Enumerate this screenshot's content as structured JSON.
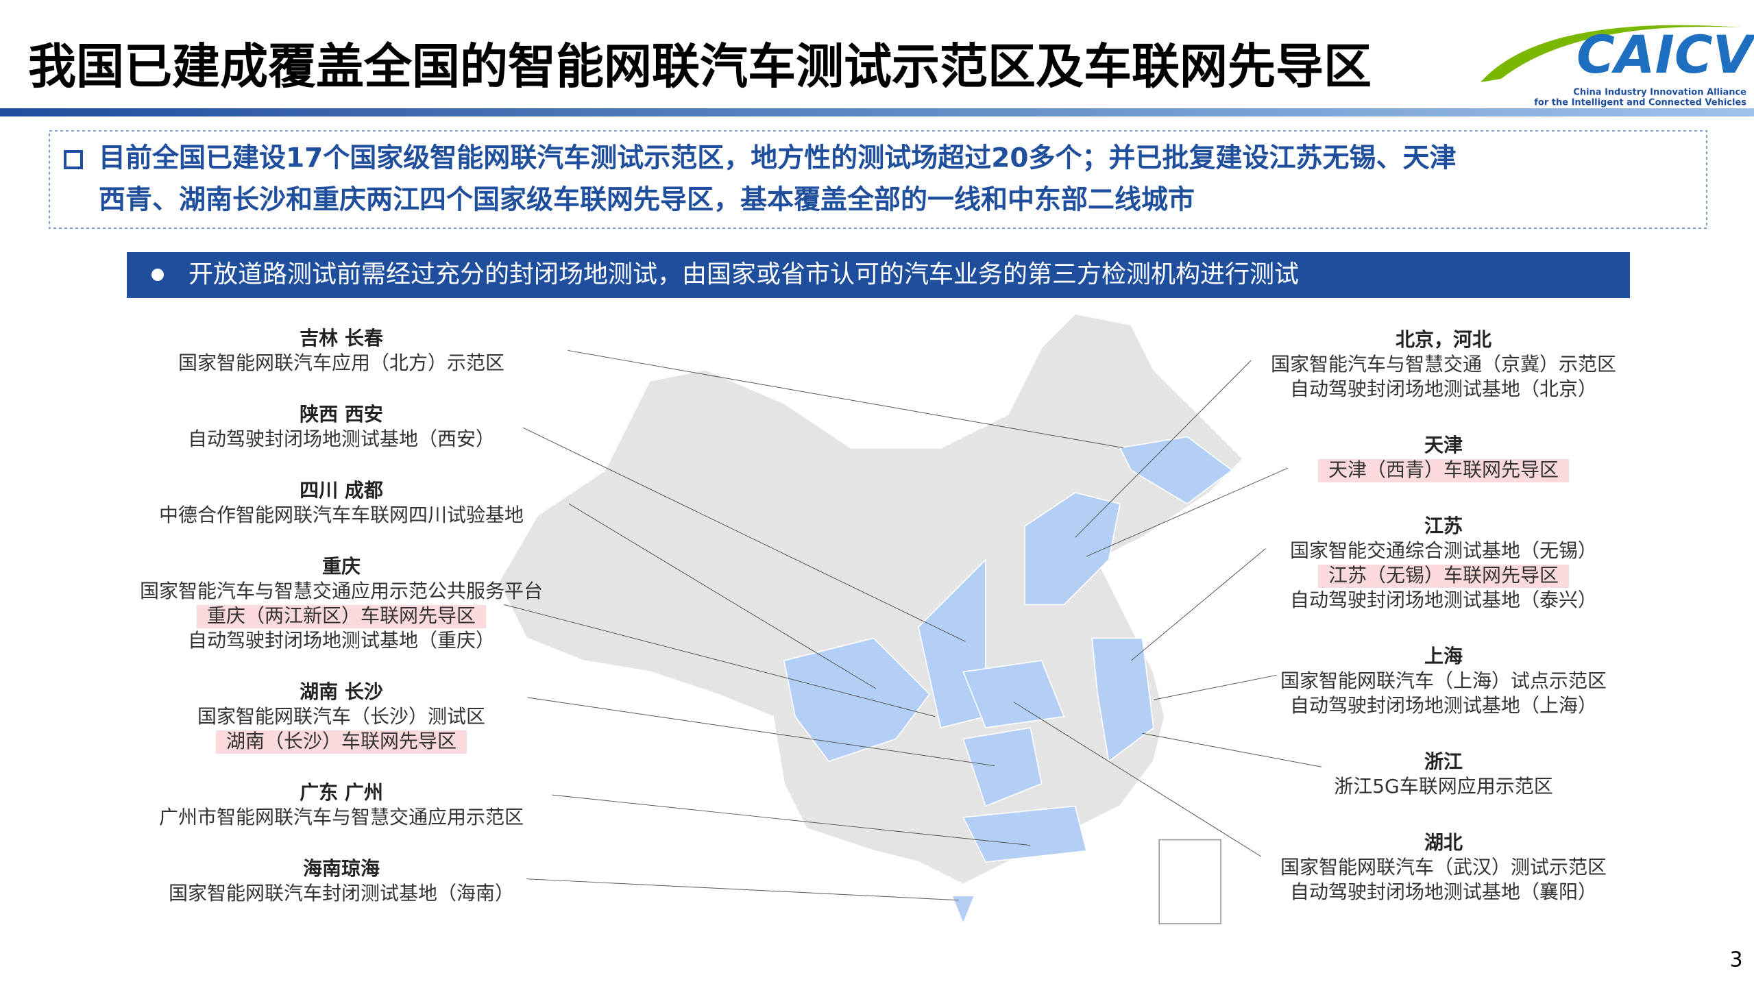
{
  "header": {
    "title": "我国已建成覆盖全国的智能网联汽车测试示范区及车联网先导区"
  },
  "logo": {
    "name": "CAICV",
    "line1": "China Industry Innovation Alliance",
    "line2": "for the Intelligent and Connected Vehicles"
  },
  "summary": {
    "lines": [
      "目前全国已建设17个国家级智能网联汽车测试示范区，地方性的测试场超过20多个；并已批复建设江苏无锡、天津",
      "西青、湖南长沙和重庆两江四个国家级车联网先导区，基本覆盖全部的一线和中东部二线城市"
    ]
  },
  "banner": {
    "text": "开放道路测试前需经过充分的封闭场地测试，由国家或省市认可的汽车业务的第三方检测机构进行测试"
  },
  "left": [
    {
      "region": "吉林 长春",
      "items": [
        {
          "text": "国家智能网联汽车应用（北方）示范区",
          "highlight": false
        }
      ]
    },
    {
      "region": "陕西 西安",
      "items": [
        {
          "text": "自动驾驶封闭场地测试基地（西安）",
          "highlight": false
        }
      ]
    },
    {
      "region": "四川 成都",
      "items": [
        {
          "text": "中德合作智能网联汽车车联网四川试验基地",
          "highlight": false
        }
      ]
    },
    {
      "region": "重庆",
      "items": [
        {
          "text": "国家智能汽车与智慧交通应用示范公共服务平台",
          "highlight": false
        },
        {
          "text": "重庆（两江新区）车联网先导区",
          "highlight": true
        },
        {
          "text": "自动驾驶封闭场地测试基地（重庆）",
          "highlight": false
        }
      ]
    },
    {
      "region": "湖南 长沙",
      "items": [
        {
          "text": "国家智能网联汽车（长沙）测试区",
          "highlight": false
        },
        {
          "text": "湖南（长沙）车联网先导区",
          "highlight": true
        }
      ]
    },
    {
      "region": "广东 广州",
      "items": [
        {
          "text": "广州市智能网联汽车与智慧交通应用示范区",
          "highlight": false
        }
      ]
    },
    {
      "region": "海南琼海",
      "items": [
        {
          "text": "国家智能网联汽车封闭测试基地（海南）",
          "highlight": false
        }
      ]
    }
  ],
  "right": [
    {
      "region": "北京，河北",
      "items": [
        {
          "text": "国家智能汽车与智慧交通（京冀）示范区",
          "highlight": false
        },
        {
          "text": "自动驾驶封闭场地测试基地（北京）",
          "highlight": false
        }
      ]
    },
    {
      "region": "天津",
      "items": [
        {
          "text": "天津（西青）车联网先导区",
          "highlight": true
        }
      ]
    },
    {
      "region": "江苏",
      "items": [
        {
          "text": "国家智能交通综合测试基地（无锡）",
          "highlight": false
        },
        {
          "text": "江苏（无锡）车联网先导区",
          "highlight": true
        },
        {
          "text": "自动驾驶封闭场地测试基地（泰兴）",
          "highlight": false
        }
      ]
    },
    {
      "region": "上海",
      "items": [
        {
          "text": "国家智能网联汽车（上海）试点示范区",
          "highlight": false
        },
        {
          "text": "自动驾驶封闭场地测试基地（上海）",
          "highlight": false
        }
      ]
    },
    {
      "region": "浙江",
      "items": [
        {
          "text": "浙江5G车联网应用示范区",
          "highlight": false
        }
      ]
    },
    {
      "region": "湖北",
      "items": [
        {
          "text": "国家智能网联汽车（武汉）测试示范区",
          "highlight": false
        },
        {
          "text": "自动驾驶封闭场地测试基地（襄阳）",
          "highlight": false
        }
      ]
    }
  ],
  "page_number": "3"
}
